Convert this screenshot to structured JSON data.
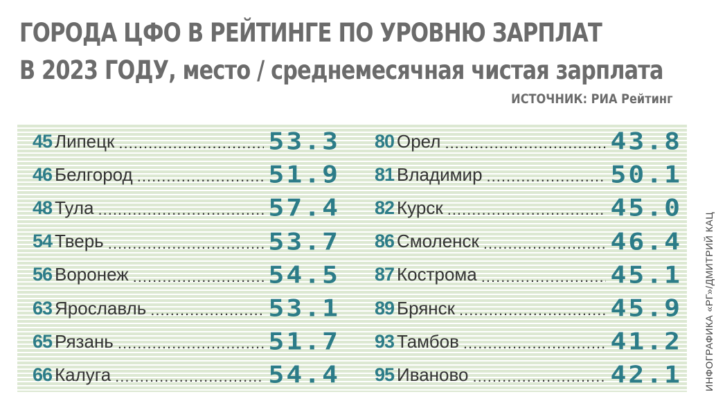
{
  "title": {
    "line1": "ГОРОДА ЦФО В РЕЙТИНГЕ ПО УРОВНЮ ЗАРПЛАТ",
    "line2": "В 2023 ГОДУ, место / среднемесячная чистая зарплата"
  },
  "source": "ИСТОЧНИК: РИА Рейтинг",
  "credit": "ИНФОГРАФИКА «РГ»/ДМИТРИЙ КАЦ",
  "table": {
    "columns": [
      {
        "rows": [
          [
            "45",
            "Липецк",
            "53.3"
          ],
          [
            "46",
            "Белгород",
            "51.9"
          ],
          [
            "48",
            "Тула",
            "57.4"
          ],
          [
            "54",
            "Тверь",
            "53.7"
          ],
          [
            "56",
            "Воронеж",
            "54.5"
          ],
          [
            "63",
            "Ярославль",
            "53.1"
          ],
          [
            "65",
            "Рязань",
            "51.7"
          ],
          [
            "66",
            "Калуга",
            "54.4"
          ]
        ]
      },
      {
        "rows": [
          [
            "80",
            "Орел",
            "43.8"
          ],
          [
            "81",
            "Владимир",
            "50.1"
          ],
          [
            "82",
            "Курск",
            "45.0"
          ],
          [
            "86",
            "Смоленск",
            "46.4"
          ],
          [
            "87",
            "Кострома",
            "45.1"
          ],
          [
            "89",
            "Брянск",
            "45.9"
          ],
          [
            "93",
            "Тамбов",
            "41.2"
          ],
          [
            "95",
            "Иваново",
            "42.1"
          ]
        ]
      }
    ]
  }
}
